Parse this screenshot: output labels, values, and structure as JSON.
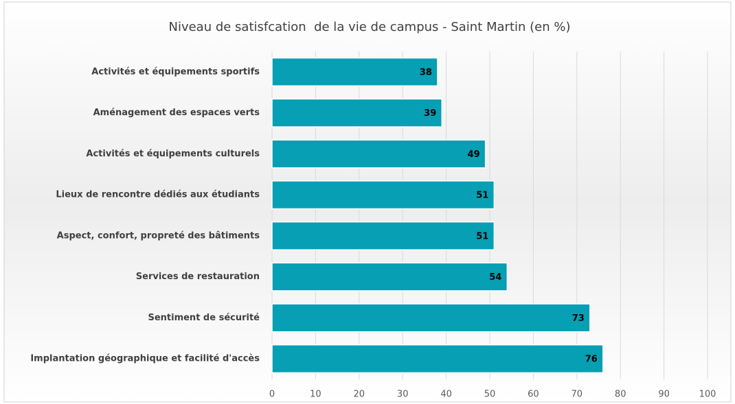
{
  "chart_data": {
    "type": "bar",
    "orientation": "horizontal",
    "title": "Niveau de satisfcation  de la vie de campus - Saint Martin (en %)",
    "categories": [
      "Activités et équipements sportifs",
      "Aménagement des espaces verts",
      "Activités et équipements culturels",
      "Lieux de rencontre dédiés aux étudiants",
      "Aspect, confort, propreté des bâtiments",
      "Services de restauration",
      "Sentiment de sécurité",
      "Implantation géographique et facilité d'accès"
    ],
    "values": [
      38,
      39,
      49,
      51,
      51,
      54,
      73,
      76
    ],
    "color": "#079fb3",
    "xlim": [
      0,
      100
    ],
    "xticks": [
      0,
      10,
      20,
      30,
      40,
      50,
      60,
      70,
      80,
      90,
      100
    ],
    "grid": true
  }
}
